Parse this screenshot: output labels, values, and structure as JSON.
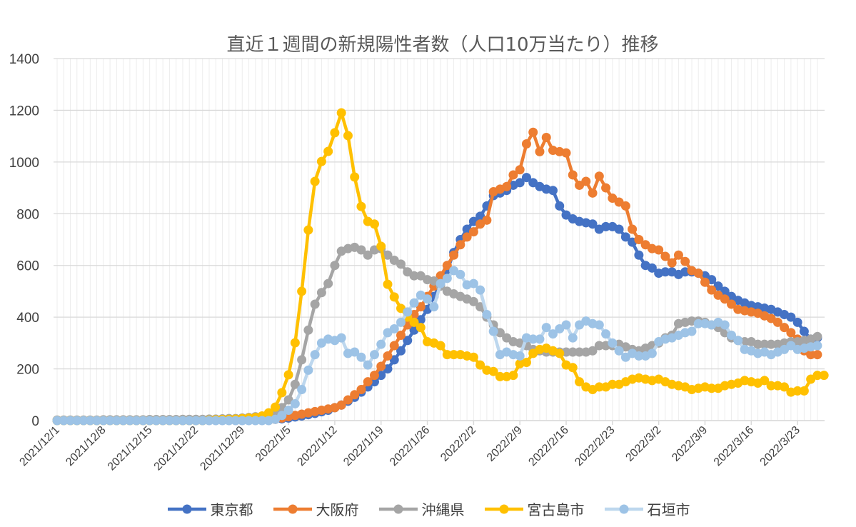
{
  "chart_data": {
    "type": "line",
    "title": "直近１週間の新規陽性者数（人口10万当たり）推移",
    "xlabel": "",
    "ylabel": "",
    "ylim": [
      0,
      1400
    ],
    "y_ticks": [
      0,
      200,
      400,
      600,
      800,
      1000,
      1200,
      1400
    ],
    "x_start": "2021/12/1",
    "x_tick_labels": [
      "2021/12/1",
      "2021/12/8",
      "2021/12/15",
      "2021/12/22",
      "2021/12/29",
      "2022/1/5",
      "2022/1/12",
      "2022/1/19",
      "2022/1/26",
      "2022/2/2",
      "2022/2/9",
      "2022/2/16",
      "2022/2/23",
      "2022/3/2",
      "2022/3/9",
      "2022/3/16",
      "2022/3/23"
    ],
    "grid": true,
    "legend_position": "bottom",
    "series": [
      {
        "name": "東京都",
        "color": "#4472C4",
        "line_color": "#4472C4",
        "values": [
          1,
          1,
          1,
          1,
          1,
          1,
          1,
          1,
          1,
          1,
          1,
          1,
          1,
          1,
          1,
          1,
          1,
          1,
          1,
          1,
          1,
          1,
          1,
          1,
          1,
          1,
          2,
          2,
          2,
          2,
          3,
          3,
          4,
          5,
          7,
          10,
          14,
          18,
          23,
          28,
          34,
          40,
          50,
          60,
          75,
          90,
          110,
          130,
          150,
          175,
          200,
          235,
          270,
          310,
          350,
          390,
          430,
          480,
          530,
          580,
          650,
          700,
          740,
          770,
          790,
          830,
          870,
          880,
          890,
          910,
          920,
          940,
          920,
          905,
          895,
          890,
          830,
          795,
          780,
          770,
          765,
          760,
          740,
          750,
          750,
          740,
          710,
          690,
          640,
          600,
          590,
          570,
          575,
          575,
          565,
          575,
          575,
          570,
          560,
          545,
          520,
          500,
          480,
          465,
          455,
          445,
          440,
          435,
          430,
          420,
          410,
          400,
          380,
          345,
          315,
          320
        ]
      },
      {
        "name": "大阪府",
        "color": "#ED7D31",
        "line_color": "#ED7D31",
        "values": [
          1,
          1,
          1,
          1,
          1,
          1,
          1,
          1,
          1,
          1,
          1,
          1,
          1,
          1,
          1,
          1,
          1,
          1,
          1,
          1,
          1,
          1,
          1,
          1,
          1,
          1,
          2,
          2,
          2,
          2,
          3,
          3,
          4,
          5,
          10,
          15,
          20,
          25,
          30,
          35,
          40,
          45,
          50,
          60,
          80,
          100,
          120,
          150,
          175,
          210,
          250,
          290,
          330,
          370,
          410,
          440,
          480,
          520,
          560,
          600,
          640,
          680,
          710,
          730,
          760,
          775,
          885,
          895,
          905,
          950,
          970,
          1070,
          1115,
          1040,
          1095,
          1045,
          1040,
          1035,
          950,
          910,
          925,
          880,
          945,
          900,
          860,
          845,
          830,
          740,
          700,
          680,
          665,
          660,
          635,
          610,
          640,
          615,
          580,
          570,
          535,
          505,
          485,
          470,
          450,
          430,
          425,
          420,
          415,
          405,
          395,
          380,
          360,
          340,
          315,
          270,
          255,
          255
        ]
      },
      {
        "name": "沖縄県",
        "color": "#A5A5A5",
        "line_color": "#A5A5A5",
        "values": [
          2,
          2,
          2,
          2,
          2,
          2,
          2,
          3,
          3,
          3,
          3,
          3,
          3,
          3,
          4,
          4,
          4,
          4,
          4,
          5,
          5,
          5,
          5,
          6,
          6,
          7,
          8,
          8,
          10,
          12,
          15,
          17,
          20,
          30,
          50,
          80,
          140,
          235,
          350,
          450,
          495,
          530,
          600,
          655,
          665,
          670,
          660,
          640,
          660,
          665,
          640,
          620,
          605,
          575,
          560,
          560,
          545,
          540,
          520,
          500,
          490,
          480,
          470,
          460,
          440,
          400,
          370,
          340,
          320,
          305,
          300,
          290,
          275,
          270,
          265,
          265,
          265,
          265,
          265,
          265,
          265,
          270,
          290,
          290,
          290,
          295,
          285,
          275,
          270,
          280,
          290,
          300,
          320,
          330,
          375,
          380,
          385,
          385,
          380,
          370,
          360,
          340,
          320,
          310,
          305,
          305,
          295,
          295,
          295,
          295,
          300,
          305,
          305,
          310,
          315,
          325
        ]
      },
      {
        "name": "宮古島市",
        "color": "#FFC000",
        "line_color": "#FFC000",
        "values": [
          0,
          0,
          0,
          0,
          0,
          0,
          0,
          0,
          0,
          0,
          0,
          0,
          0,
          0,
          0,
          0,
          0,
          0,
          0,
          0,
          0,
          0,
          0,
          2,
          3,
          4,
          5,
          6,
          8,
          10,
          12,
          18,
          30,
          52,
          108,
          177,
          301,
          500,
          737,
          925,
          1002,
          1041,
          1113,
          1190,
          1102,
          942,
          828,
          770,
          760,
          674,
          527,
          478,
          434,
          400,
          380,
          360,
          305,
          300,
          290,
          255,
          255,
          255,
          250,
          245,
          215,
          195,
          190,
          170,
          170,
          175,
          220,
          225,
          260,
          275,
          280,
          270,
          260,
          215,
          205,
          150,
          130,
          120,
          130,
          130,
          140,
          140,
          150,
          160,
          165,
          160,
          155,
          160,
          150,
          140,
          135,
          130,
          120,
          125,
          130,
          125,
          125,
          135,
          140,
          145,
          155,
          150,
          145,
          155,
          135,
          135,
          130,
          110,
          115,
          115,
          160,
          175,
          175
        ]
      },
      {
        "name": "石垣市",
        "color": "#9DC3E6",
        "line_color": "#BDD7EE",
        "values": [
          0,
          0,
          0,
          0,
          0,
          0,
          0,
          0,
          0,
          0,
          0,
          0,
          0,
          0,
          0,
          0,
          0,
          0,
          0,
          0,
          0,
          0,
          0,
          0,
          0,
          0,
          0,
          0,
          0,
          0,
          0,
          0,
          0,
          5,
          20,
          40,
          65,
          120,
          195,
          255,
          300,
          315,
          310,
          320,
          260,
          265,
          245,
          215,
          255,
          295,
          340,
          355,
          380,
          420,
          455,
          485,
          470,
          440,
          530,
          550,
          580,
          565,
          525,
          530,
          505,
          410,
          345,
          255,
          265,
          255,
          250,
          320,
          315,
          315,
          360,
          335,
          355,
          370,
          320,
          370,
          385,
          375,
          370,
          335,
          300,
          270,
          245,
          260,
          250,
          250,
          260,
          305,
          315,
          320,
          330,
          340,
          345,
          375,
          375,
          370,
          380,
          370,
          330,
          310,
          275,
          270,
          260,
          265,
          255,
          265,
          275,
          290,
          275,
          280,
          285,
          290
        ]
      }
    ]
  }
}
